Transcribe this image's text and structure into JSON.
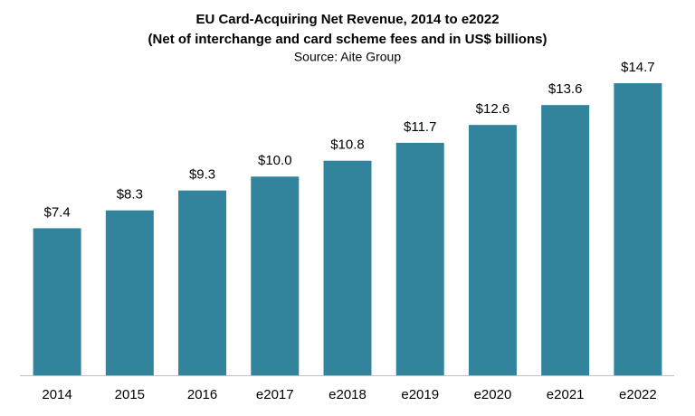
{
  "chart_data": {
    "type": "bar",
    "title": "EU Card-Acquiring  Net Revenue, 2014 to e2022",
    "subtitle": "(Net of interchange and card scheme fees and in US$ billions)",
    "source": "Source: Aite Group",
    "categories": [
      "2014",
      "2015",
      "2016",
      "e2017",
      "e2018",
      "e2019",
      "e2020",
      "e2021",
      "e2022"
    ],
    "values": [
      7.4,
      8.3,
      9.3,
      10.0,
      10.8,
      11.7,
      12.6,
      13.6,
      14.7
    ],
    "value_labels": [
      "$7.4",
      "$8.3",
      "$9.3",
      "$10.0",
      "$10.8",
      "$11.7",
      "$12.6",
      "$13.6",
      "$14.7"
    ],
    "color": "#31849b"
  }
}
